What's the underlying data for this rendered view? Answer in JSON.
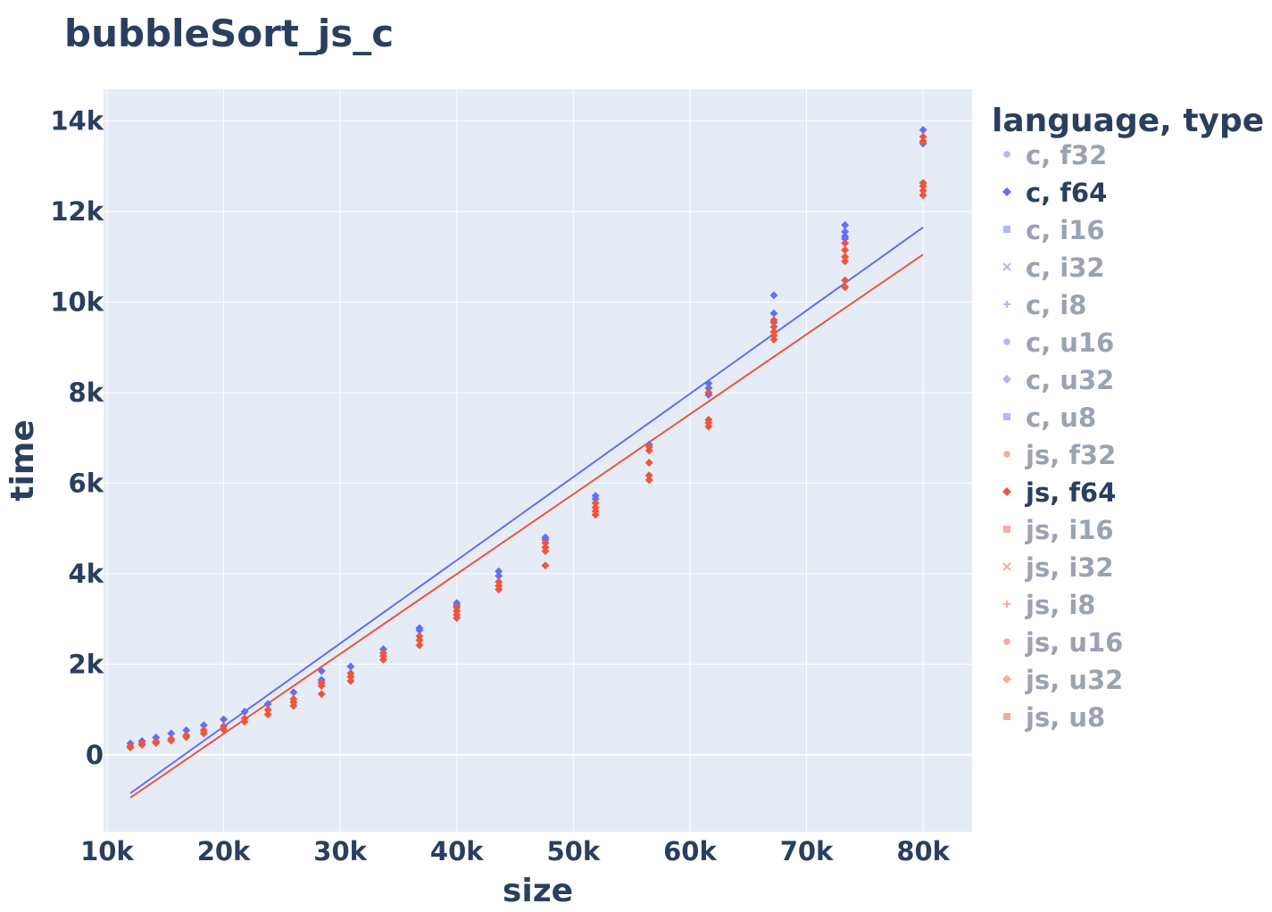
{
  "chart_data": {
    "type": "scatter",
    "title": "bubbleSort_js_c",
    "xlabel": "size",
    "ylabel": "time",
    "xlim": [
      9700,
      84200
    ],
    "ylim": [
      -1700,
      14700
    ],
    "x_ticks": [
      10000,
      20000,
      30000,
      40000,
      50000,
      60000,
      70000,
      80000
    ],
    "x_tick_labels": [
      "10k",
      "20k",
      "30k",
      "40k",
      "50k",
      "60k",
      "70k",
      "80k"
    ],
    "y_ticks": [
      0,
      2000,
      4000,
      6000,
      8000,
      10000,
      12000,
      14000
    ],
    "y_tick_labels": [
      "0",
      "2k",
      "4k",
      "6k",
      "8k",
      "10k",
      "12k",
      "14k"
    ],
    "grid": true,
    "legend_title": "language, type",
    "legend_position": "right",
    "legend": [
      {
        "label": "c, f32",
        "symbol": "circle",
        "color": "#636efa",
        "visible": false
      },
      {
        "label": "c, f64",
        "symbol": "diamond",
        "color": "#636efa",
        "visible": true
      },
      {
        "label": "c, i16",
        "symbol": "square",
        "color": "#636efa",
        "visible": false
      },
      {
        "label": "c, i32",
        "symbol": "x",
        "color": "#636efa",
        "visible": false
      },
      {
        "label": "c, i8",
        "symbol": "cross",
        "color": "#636efa",
        "visible": false
      },
      {
        "label": "c, u16",
        "symbol": "circle",
        "color": "#636efa",
        "visible": false
      },
      {
        "label": "c, u32",
        "symbol": "diamond",
        "color": "#636efa",
        "visible": false
      },
      {
        "label": "c, u8",
        "symbol": "square",
        "color": "#636efa",
        "visible": false
      },
      {
        "label": "js, f32",
        "symbol": "circle",
        "color": "#ef553b",
        "visible": false
      },
      {
        "label": "js, f64",
        "symbol": "diamond",
        "color": "#ef553b",
        "visible": true
      },
      {
        "label": "js, i16",
        "symbol": "square",
        "color": "#ef553b",
        "visible": false
      },
      {
        "label": "js, i32",
        "symbol": "x",
        "color": "#ef553b",
        "visible": false
      },
      {
        "label": "js, i8",
        "symbol": "cross",
        "color": "#ef553b",
        "visible": false
      },
      {
        "label": "js, u16",
        "symbol": "circle",
        "color": "#ef553b",
        "visible": false
      },
      {
        "label": "js, u32",
        "symbol": "diamond",
        "color": "#ef553b",
        "visible": false
      },
      {
        "label": "js, u8",
        "symbol": "square",
        "color": "#ef553b",
        "visible": false
      }
    ],
    "series": [
      {
        "name": "c, f64",
        "color": "#636efa",
        "symbol": "diamond",
        "points": [
          [
            12000,
            250
          ],
          [
            13000,
            300
          ],
          [
            14200,
            380
          ],
          [
            15500,
            470
          ],
          [
            16800,
            540
          ],
          [
            18300,
            650
          ],
          [
            20000,
            780
          ],
          [
            21800,
            950
          ],
          [
            23800,
            1120
          ],
          [
            26000,
            1380
          ],
          [
            28400,
            1650
          ],
          [
            28400,
            1850
          ],
          [
            30900,
            1950
          ],
          [
            33700,
            2330
          ],
          [
            36800,
            2800
          ],
          [
            36800,
            2750
          ],
          [
            40000,
            3350
          ],
          [
            40000,
            3300
          ],
          [
            43600,
            4050
          ],
          [
            43600,
            3950
          ],
          [
            47600,
            4800
          ],
          [
            47600,
            4750
          ],
          [
            51900,
            5720
          ],
          [
            51900,
            5650
          ],
          [
            56500,
            6850
          ],
          [
            61600,
            8200
          ],
          [
            61600,
            8100
          ],
          [
            61600,
            7950
          ],
          [
            67200,
            10150
          ],
          [
            67200,
            9750
          ],
          [
            67200,
            9550
          ],
          [
            73300,
            11700
          ],
          [
            73300,
            11550
          ],
          [
            73300,
            11450
          ],
          [
            73300,
            11400
          ],
          [
            80000,
            13800
          ],
          [
            80000,
            13550
          ],
          [
            80000,
            13500
          ]
        ]
      },
      {
        "name": "js, f64",
        "color": "#ef553b",
        "symbol": "diamond",
        "points": [
          [
            12000,
            160
          ],
          [
            12000,
            190
          ],
          [
            13000,
            220
          ],
          [
            13000,
            250
          ],
          [
            14200,
            260
          ],
          [
            14200,
            290
          ],
          [
            15500,
            310
          ],
          [
            15500,
            350
          ],
          [
            16800,
            390
          ],
          [
            16800,
            430
          ],
          [
            18300,
            470
          ],
          [
            18300,
            540
          ],
          [
            20000,
            560
          ],
          [
            20000,
            630
          ],
          [
            21800,
            730
          ],
          [
            21800,
            800
          ],
          [
            23800,
            890
          ],
          [
            23800,
            990
          ],
          [
            26000,
            1080
          ],
          [
            26000,
            1160
          ],
          [
            26000,
            1230
          ],
          [
            28400,
            1340
          ],
          [
            28400,
            1520
          ],
          [
            28400,
            1590
          ],
          [
            30900,
            1630
          ],
          [
            30900,
            1720
          ],
          [
            30900,
            1800
          ],
          [
            33700,
            2100
          ],
          [
            33700,
            2180
          ],
          [
            33700,
            2250
          ],
          [
            36800,
            2420
          ],
          [
            36800,
            2530
          ],
          [
            36800,
            2620
          ],
          [
            40000,
            3020
          ],
          [
            40000,
            3090
          ],
          [
            40000,
            3170
          ],
          [
            40000,
            3250
          ],
          [
            43600,
            3650
          ],
          [
            43600,
            3730
          ],
          [
            43600,
            3820
          ],
          [
            47600,
            4180
          ],
          [
            47600,
            4500
          ],
          [
            47600,
            4580
          ],
          [
            47600,
            4680
          ],
          [
            51900,
            5300
          ],
          [
            51900,
            5380
          ],
          [
            51900,
            5460
          ],
          [
            51900,
            5560
          ],
          [
            56500,
            6070
          ],
          [
            56500,
            6170
          ],
          [
            56500,
            6450
          ],
          [
            56500,
            6720
          ],
          [
            56500,
            6800
          ],
          [
            61600,
            7250
          ],
          [
            61600,
            7330
          ],
          [
            61600,
            7400
          ],
          [
            61600,
            8000
          ],
          [
            67200,
            9170
          ],
          [
            67200,
            9260
          ],
          [
            67200,
            9340
          ],
          [
            67200,
            9450
          ],
          [
            67200,
            9600
          ],
          [
            73300,
            10330
          ],
          [
            73300,
            10480
          ],
          [
            73300,
            10900
          ],
          [
            73300,
            11000
          ],
          [
            73300,
            11150
          ],
          [
            73300,
            11300
          ],
          [
            80000,
            12360
          ],
          [
            80000,
            12460
          ],
          [
            80000,
            12560
          ],
          [
            80000,
            12630
          ],
          [
            80000,
            13550
          ],
          [
            80000,
            13650
          ]
        ]
      }
    ],
    "trendlines": [
      {
        "name": "c, f64",
        "color": "#636efa",
        "x": [
          12000,
          80000
        ],
        "y": [
          -850,
          11650
        ]
      },
      {
        "name": "js, f64",
        "color": "#ef553b",
        "x": [
          12000,
          80000
        ],
        "y": [
          -950,
          11050
        ]
      }
    ]
  }
}
